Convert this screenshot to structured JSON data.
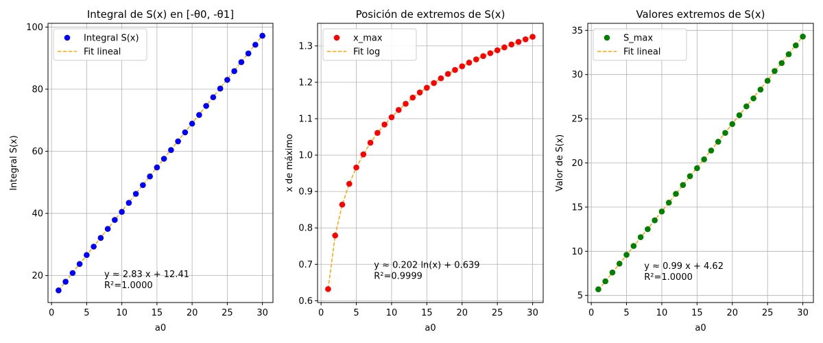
{
  "chart_data": [
    {
      "type": "scatter",
      "title": "Integral de S(x) en [-θ0, -θ1]",
      "xlabel": "a0",
      "ylabel": "Integral S(x)",
      "xlim": [
        -0.5,
        31.5
      ],
      "ylim": [
        11.3,
        101.2
      ],
      "xticks": [
        0,
        5,
        10,
        15,
        20,
        25,
        30
      ],
      "yticks": [
        20,
        40,
        60,
        80,
        100
      ],
      "grid": true,
      "legend_placement": "upper-left",
      "fit": {
        "kind": "linear",
        "slope": 2.83,
        "intercept": 12.41
      },
      "series": [
        {
          "name": "Integral S(x)",
          "kind": "points",
          "color": "#0000ff",
          "x": [
            1,
            2,
            3,
            4,
            5,
            6,
            7,
            8,
            9,
            10,
            11,
            12,
            13,
            14,
            15,
            16,
            17,
            18,
            19,
            20,
            21,
            22,
            23,
            24,
            25,
            26,
            27,
            28,
            29,
            30
          ],
          "y": [
            15.2,
            18.0,
            20.8,
            23.7,
            26.6,
            29.3,
            32.1,
            35.0,
            37.9,
            40.5,
            43.4,
            46.3,
            49.1,
            51.9,
            54.8,
            57.6,
            60.4,
            63.2,
            66.1,
            68.9,
            71.7,
            74.6,
            77.4,
            80.2,
            83.0,
            85.8,
            88.7,
            91.5,
            94.3,
            97.2
          ]
        },
        {
          "name": "Fit lineal",
          "kind": "fit-line",
          "color": "#ffa500"
        }
      ],
      "annotation": {
        "line1": "y ≈ 2.83 x + 12.41",
        "line2": "R²=1.0000",
        "x": 7.5,
        "y": 19.5
      }
    },
    {
      "type": "scatter",
      "title": "Posición de extremos de S(x)",
      "xlabel": "a0",
      "ylabel": "x de máximo",
      "xlim": [
        -0.5,
        31.5
      ],
      "ylim": [
        0.595,
        1.362
      ],
      "xticks": [
        0,
        5,
        10,
        15,
        20,
        25,
        30
      ],
      "yticks": [
        0.6,
        0.7,
        0.8,
        0.9,
        1.0,
        1.1,
        1.2,
        1.3
      ],
      "ytick_labels": [
        "0.6",
        "0.7",
        "0.8",
        "0.9",
        "1.0",
        "1.1",
        "1.2",
        "1.3"
      ],
      "grid": true,
      "legend_placement": "upper-left",
      "fit": {
        "kind": "log"
      },
      "series": [
        {
          "name": "x_max",
          "kind": "points",
          "color": "#ff0000",
          "x": [
            1,
            2,
            3,
            4,
            5,
            6,
            7,
            8,
            9,
            10,
            11,
            12,
            13,
            14,
            15,
            16,
            17,
            18,
            19,
            20,
            21,
            22,
            23,
            24,
            25,
            26,
            27,
            28,
            29,
            30
          ],
          "y": [
            0.632,
            0.779,
            0.864,
            0.921,
            0.966,
            1.002,
            1.034,
            1.061,
            1.084,
            1.104,
            1.124,
            1.141,
            1.158,
            1.172,
            1.185,
            1.198,
            1.211,
            1.223,
            1.234,
            1.244,
            1.254,
            1.263,
            1.272,
            1.28,
            1.288,
            1.296,
            1.304,
            1.311,
            1.318,
            1.325
          ]
        },
        {
          "name": "Fit log",
          "kind": "fit-line",
          "color": "#ffa500"
        }
      ],
      "annotation": {
        "line1": "y ≈ 0.202 ln(x) + 0.639",
        "line2": "R²=0.9999",
        "x": 7.5,
        "y": 0.69
      }
    },
    {
      "type": "scatter",
      "title": "Valores extremos de S(x)",
      "xlabel": "a0",
      "ylabel": "Valor de S(x)",
      "xlim": [
        -0.5,
        31.5
      ],
      "ylim": [
        4.2,
        35.8
      ],
      "xticks": [
        0,
        5,
        10,
        15,
        20,
        25,
        30
      ],
      "yticks": [
        5,
        10,
        15,
        20,
        25,
        30,
        35
      ],
      "grid": true,
      "legend_placement": "upper-left",
      "fit": {
        "kind": "linear",
        "slope": 0.99,
        "intercept": 4.62
      },
      "series": [
        {
          "name": "S_max",
          "kind": "points",
          "color": "#008000",
          "x": [
            1,
            2,
            3,
            4,
            5,
            6,
            7,
            8,
            9,
            10,
            11,
            12,
            13,
            14,
            15,
            16,
            17,
            18,
            19,
            20,
            21,
            22,
            23,
            24,
            25,
            26,
            27,
            28,
            29,
            30
          ],
          "y": [
            5.7,
            6.6,
            7.6,
            8.6,
            9.6,
            10.6,
            11.6,
            12.5,
            13.5,
            14.5,
            15.5,
            16.5,
            17.5,
            18.5,
            19.4,
            20.4,
            21.4,
            22.4,
            23.4,
            24.4,
            25.4,
            26.4,
            27.3,
            28.3,
            29.3,
            30.4,
            31.3,
            32.3,
            33.3,
            34.3
          ]
        },
        {
          "name": "Fit lineal",
          "kind": "fit-line",
          "color": "#ffa500"
        }
      ],
      "annotation": {
        "line1": "y ≈ 0.99 x + 4.62",
        "line2": "R²=1.0000",
        "x": 7.5,
        "y": 8.0
      }
    }
  ]
}
